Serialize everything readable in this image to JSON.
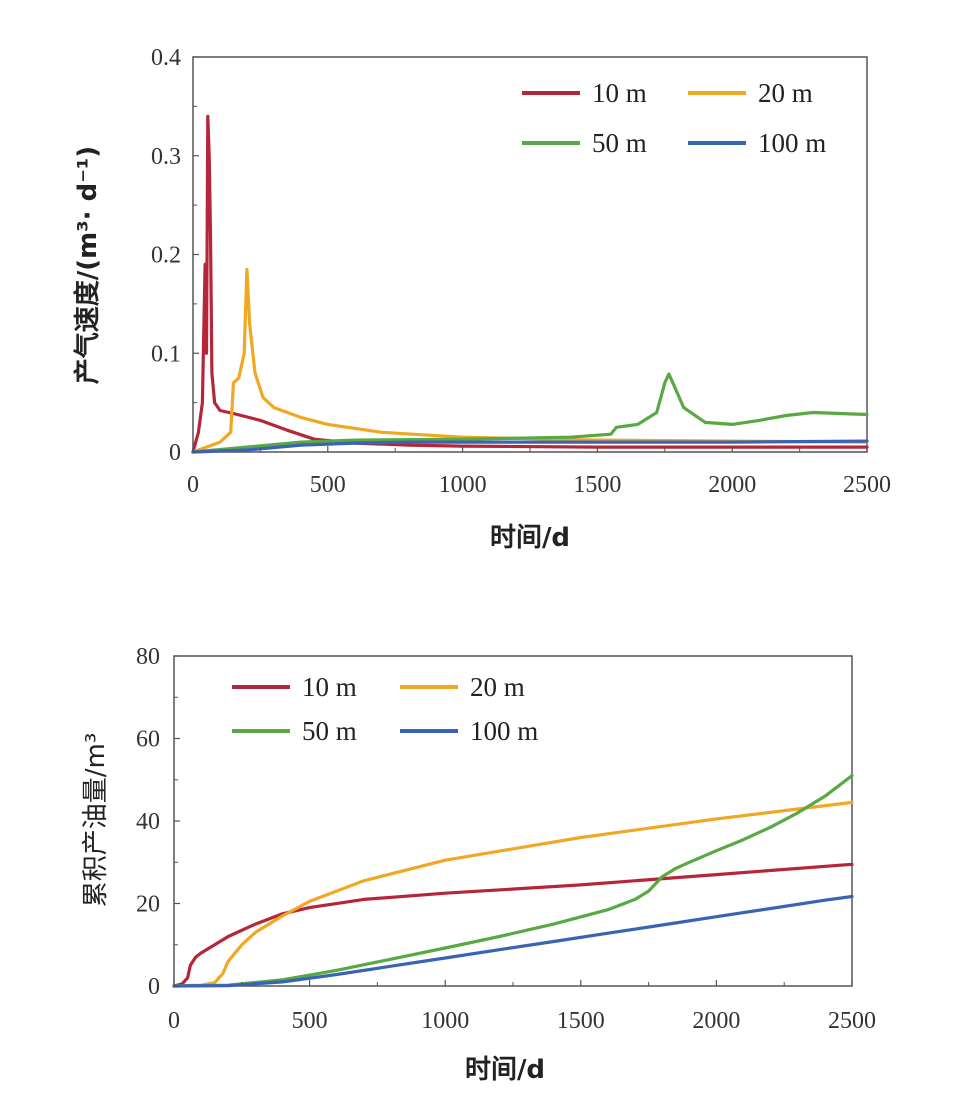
{
  "chart_data": [
    {
      "type": "line",
      "title": "",
      "xlabel": "时间/d",
      "ylabel": "产气速度/(m³· d⁻¹)",
      "xlim": [
        0,
        2500
      ],
      "ylim": [
        0,
        0.4
      ],
      "xticks": [
        "0",
        "500",
        "1000",
        "1500",
        "2000",
        "2500"
      ],
      "yticks": [
        "0",
        "0.1",
        "0.2",
        "0.3",
        "0.4"
      ],
      "grid": false,
      "legend": "top-right",
      "series": [
        {
          "name": "10 m",
          "color": "#b5263a",
          "x": [
            0,
            20,
            35,
            45,
            50,
            55,
            60,
            65,
            70,
            80,
            100,
            150,
            250,
            350,
            450,
            600,
            800,
            1000,
            1500,
            2000,
            2500
          ],
          "y": [
            0.0,
            0.02,
            0.05,
            0.19,
            0.1,
            0.34,
            0.3,
            0.22,
            0.08,
            0.05,
            0.042,
            0.039,
            0.032,
            0.022,
            0.013,
            0.009,
            0.007,
            0.006,
            0.005,
            0.005,
            0.005
          ]
        },
        {
          "name": "20 m",
          "color": "#f0a823",
          "x": [
            0,
            50,
            100,
            140,
            150,
            170,
            190,
            200,
            210,
            230,
            260,
            300,
            400,
            500,
            700,
            1000,
            1500,
            2000,
            2500
          ],
          "y": [
            0.0,
            0.005,
            0.01,
            0.02,
            0.07,
            0.075,
            0.1,
            0.185,
            0.13,
            0.08,
            0.055,
            0.045,
            0.035,
            0.028,
            0.02,
            0.015,
            0.012,
            0.011,
            0.01
          ],
          "raw": true
        },
        {
          "name": "50 m",
          "color": "#58a843",
          "x": [
            0,
            200,
            400,
            600,
            1000,
            1400,
            1550,
            1570,
            1650,
            1720,
            1750,
            1765,
            1780,
            1820,
            1900,
            2000,
            2100,
            2200,
            2300,
            2400,
            2500
          ],
          "y": [
            0.0,
            0.005,
            0.01,
            0.012,
            0.013,
            0.015,
            0.018,
            0.025,
            0.028,
            0.04,
            0.07,
            0.079,
            0.07,
            0.045,
            0.03,
            0.028,
            0.032,
            0.037,
            0.04,
            0.039,
            0.038
          ]
        },
        {
          "name": "100 m",
          "color": "#3b63b5",
          "x": [
            0,
            200,
            400,
            600,
            800,
            1000,
            1500,
            2000,
            2500
          ],
          "y": [
            0.0,
            0.002,
            0.007,
            0.009,
            0.01,
            0.01,
            0.01,
            0.01,
            0.011
          ]
        }
      ]
    },
    {
      "type": "line",
      "title": "",
      "xlabel": "时间/d",
      "ylabel": "累积产油量/m³",
      "xlim": [
        0,
        2500
      ],
      "ylim": [
        0,
        80
      ],
      "xticks": [
        "0",
        "500",
        "1000",
        "1500",
        "2000",
        "2500"
      ],
      "yticks": [
        "0",
        "20",
        "40",
        "60",
        "80"
      ],
      "grid": false,
      "legend": "top-left",
      "series": [
        {
          "name": "10 m",
          "color": "#b5263a",
          "x": [
            0,
            30,
            50,
            60,
            80,
            100,
            150,
            200,
            300,
            400,
            500,
            700,
            1000,
            1500,
            2000,
            2500
          ],
          "y": [
            0,
            0.5,
            2,
            5,
            7,
            8,
            10,
            12,
            15,
            17.5,
            19,
            21,
            22.5,
            24.5,
            27,
            29.5
          ]
        },
        {
          "name": "20 m",
          "color": "#f0a823",
          "x": [
            0,
            100,
            150,
            180,
            200,
            250,
            300,
            400,
            500,
            700,
            1000,
            1500,
            2000,
            2500
          ],
          "y": [
            0,
            0.2,
            0.8,
            3,
            6,
            10,
            13,
            17,
            20.5,
            25.5,
            30.5,
            36,
            40.5,
            44.5
          ]
        },
        {
          "name": "50 m",
          "color": "#58a843",
          "x": [
            0,
            200,
            400,
            600,
            800,
            1000,
            1200,
            1400,
            1600,
            1700,
            1750,
            1800,
            1850,
            1900,
            2000,
            2100,
            2200,
            2300,
            2400,
            2500
          ],
          "y": [
            0,
            0.2,
            1.5,
            3.8,
            6.5,
            9.2,
            12,
            15,
            18.5,
            21,
            23,
            26.5,
            28.5,
            30,
            32.8,
            35.5,
            38.5,
            42,
            46,
            51
          ]
        },
        {
          "name": "100 m",
          "color": "#3b63b5",
          "x": [
            0,
            200,
            400,
            600,
            800,
            1000,
            1200,
            1400,
            1600,
            1800,
            2000,
            2200,
            2400,
            2500
          ],
          "y": [
            0,
            0.1,
            1,
            2.8,
            4.8,
            6.8,
            8.8,
            10.8,
            12.8,
            14.8,
            16.8,
            18.8,
            20.8,
            21.7
          ]
        }
      ]
    }
  ]
}
